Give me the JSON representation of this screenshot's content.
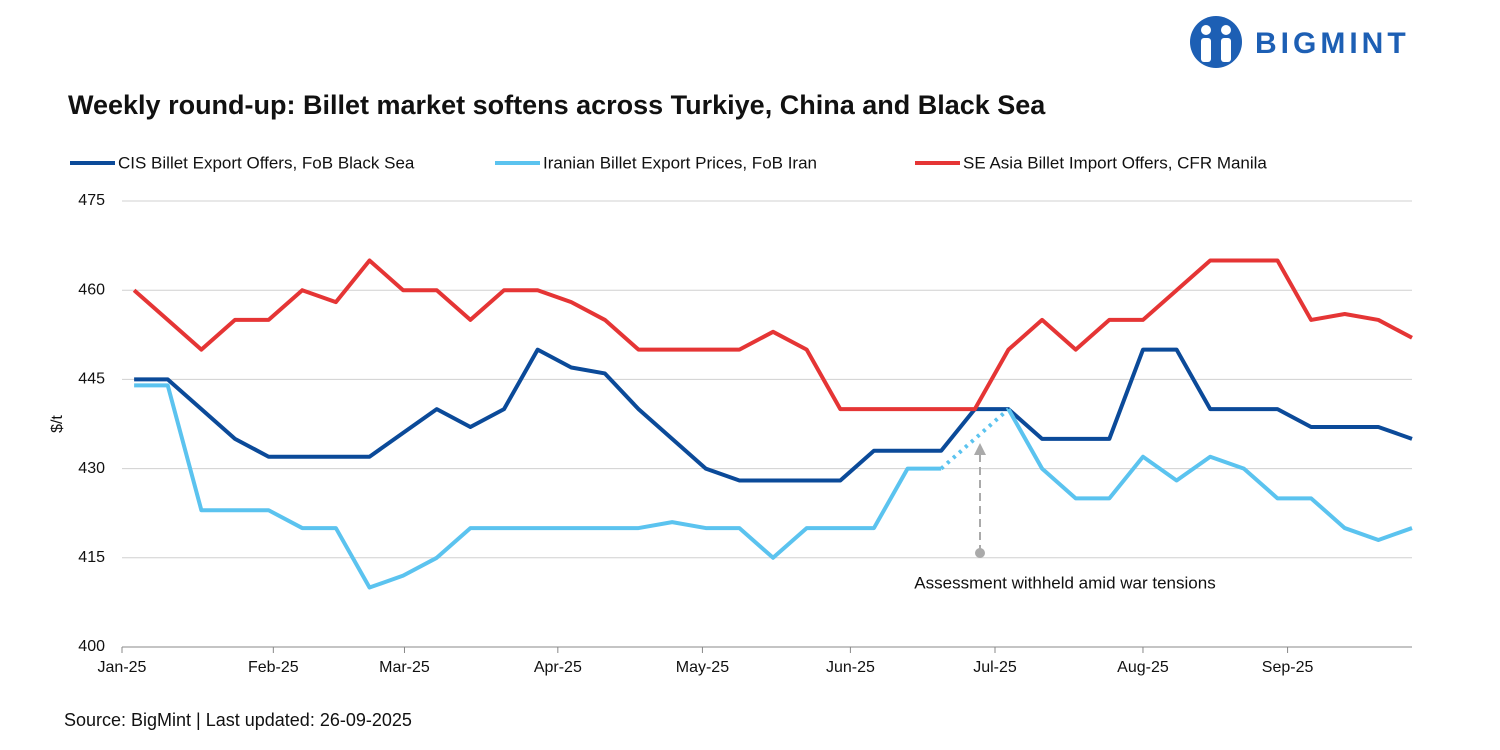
{
  "logo": "BIGMINT",
  "chart_data": {
    "type": "line",
    "title": "Weekly round-up: Billet market softens across Turkiye, China and Black Sea",
    "ylabel": "$/t",
    "source": "Source: BigMint | Last updated: 26-09-2025",
    "annotation": "Assessment withheld amid  war tensions",
    "xlim": [
      -0.36,
      38
    ],
    "xticks": [
      {
        "value": -0.36,
        "label": "Jan-25"
      },
      {
        "value": 4.14,
        "label": "Feb-25"
      },
      {
        "value": 8.04,
        "label": "Mar-25"
      },
      {
        "value": 12.6,
        "label": "Apr-25"
      },
      {
        "value": 16.9,
        "label": "May-25"
      },
      {
        "value": 21.3,
        "label": "Jun-25"
      },
      {
        "value": 25.6,
        "label": "Jul-25"
      },
      {
        "value": 30.0,
        "label": "Aug-25"
      },
      {
        "value": 34.3,
        "label": "Sep-25"
      }
    ],
    "ylim": [
      400,
      475
    ],
    "yticks": [
      400,
      415,
      430,
      445,
      460,
      475
    ],
    "grid": true,
    "series": [
      {
        "name": "CIS Billet Export Offers, FoB Black Sea",
        "color": "#0b4a99",
        "values": [
          445,
          445,
          440,
          435,
          432,
          432,
          432,
          432,
          436,
          440,
          437,
          440,
          450,
          447,
          446,
          440,
          435,
          430,
          428,
          428,
          428,
          428,
          433,
          433,
          433,
          440,
          440,
          435,
          435,
          435,
          450,
          450,
          440,
          440,
          440,
          437,
          437,
          437,
          435
        ]
      },
      {
        "name": "Iranian Billet Export Prices, FoB Iran",
        "color": "#5bc3ef",
        "values": [
          444,
          444,
          423,
          423,
          423,
          420,
          420,
          410,
          412,
          415,
          420,
          420,
          420,
          420,
          420,
          420,
          421,
          420,
          420,
          415,
          420,
          420,
          420,
          430,
          430,
          null,
          440,
          430,
          425,
          425,
          432,
          428,
          432,
          430,
          425,
          425,
          420,
          418,
          420
        ]
      },
      {
        "name": "SE Asia Billet Import Offers, CFR Manila",
        "color": "#e53535",
        "values": [
          460,
          455,
          450,
          455,
          455,
          460,
          458,
          465,
          460,
          460,
          455,
          460,
          460,
          458,
          455,
          450,
          450,
          450,
          450,
          453,
          450,
          440,
          440,
          440,
          440,
          440,
          450,
          455,
          450,
          455,
          455,
          460,
          465,
          465,
          465,
          455,
          456,
          455,
          452
        ]
      }
    ]
  }
}
